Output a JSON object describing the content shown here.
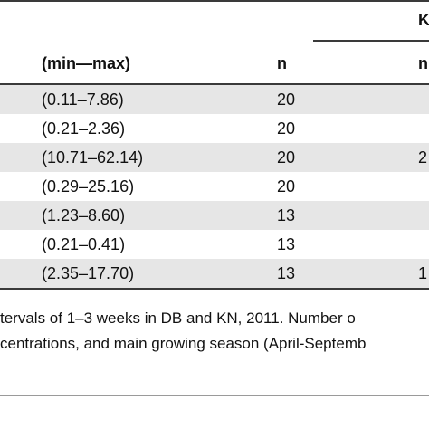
{
  "table": {
    "top_header_right": "K",
    "columns": {
      "range": "(min—max)",
      "n": "n",
      "n2": "n"
    },
    "rows": [
      {
        "range": "(0.11–7.86)",
        "n": "20",
        "n2": ""
      },
      {
        "range": "(0.21–2.36)",
        "n": "20",
        "n2": ""
      },
      {
        "range": "(10.71–62.14)",
        "n": "20",
        "n2": "2"
      },
      {
        "range": "(0.29–25.16)",
        "n": "20",
        "n2": ""
      },
      {
        "range": "(1.23–8.60)",
        "n": "13",
        "n2": ""
      },
      {
        "range": "(0.21–0.41)",
        "n": "13",
        "n2": ""
      },
      {
        "range": "(2.35–17.70)",
        "n": "13",
        "n2": "1"
      }
    ]
  },
  "caption": {
    "line1": "tervals of 1–3 weeks in DB and KN, 2011. Number o",
    "line2": "centrations, and main growing season (April-Septemb"
  }
}
